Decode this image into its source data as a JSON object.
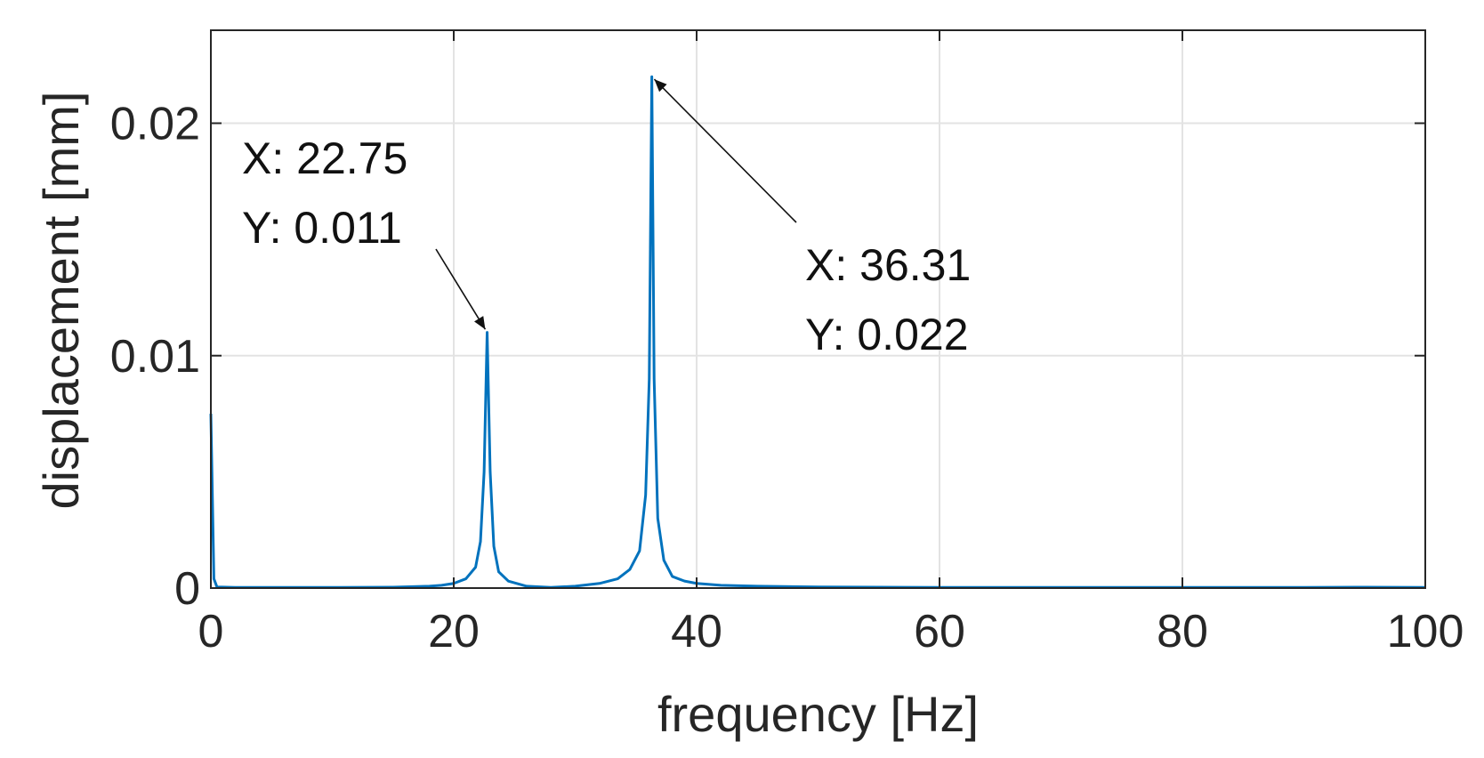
{
  "chart_data": {
    "type": "line",
    "xlabel": "frequency [Hz]",
    "ylabel": "displacement [mm]",
    "xlim": [
      0,
      100
    ],
    "ylim": [
      0,
      0.024
    ],
    "xticks": [
      0,
      20,
      40,
      60,
      80,
      100
    ],
    "xtick_labels": [
      "0",
      "20",
      "40",
      "60",
      "80",
      "100"
    ],
    "yticks": [
      0,
      0.01,
      0.02
    ],
    "ytick_labels": [
      "0",
      "0.01",
      "0.02"
    ],
    "grid": true,
    "series": [
      {
        "color": "#0072BD",
        "x": [
          0,
          0.25,
          0.5,
          2,
          5,
          10,
          15,
          18,
          19,
          20,
          21,
          21.8,
          22.2,
          22.5,
          22.75,
          23.0,
          23.3,
          23.7,
          24.5,
          26,
          28,
          30,
          32,
          33.5,
          34.5,
          35.3,
          35.8,
          36.1,
          36.31,
          36.5,
          36.8,
          37.3,
          38,
          39,
          40,
          42,
          45,
          50,
          55,
          60,
          70,
          80,
          90,
          95,
          100
        ],
        "y": [
          0.0075,
          0.0004,
          5e-05,
          3e-05,
          3e-05,
          3e-05,
          4e-05,
          8e-05,
          0.00012,
          0.0002,
          0.0004,
          0.0009,
          0.002,
          0.005,
          0.011,
          0.005,
          0.0018,
          0.0007,
          0.0003,
          8e-05,
          3e-05,
          8e-05,
          0.0002,
          0.0004,
          0.0008,
          0.0016,
          0.004,
          0.009,
          0.022,
          0.009,
          0.003,
          0.0012,
          0.0005,
          0.0003,
          0.0002,
          0.00012,
          8e-05,
          5e-05,
          4e-05,
          3e-05,
          3e-05,
          3e-05,
          3e-05,
          4e-05,
          3e-05
        ]
      }
    ],
    "annotations": [
      {
        "x": 22.75,
        "y": 0.011,
        "line1": "X: 22.75",
        "line2": "Y: 0.011"
      },
      {
        "x": 36.31,
        "y": 0.022,
        "line1": "X: 36.31",
        "line2": "Y: 0.022"
      }
    ],
    "colors": {
      "line": "#0072BD",
      "axes": "#262626",
      "grid": "#e3e3e3",
      "annotation": "#111111"
    }
  }
}
